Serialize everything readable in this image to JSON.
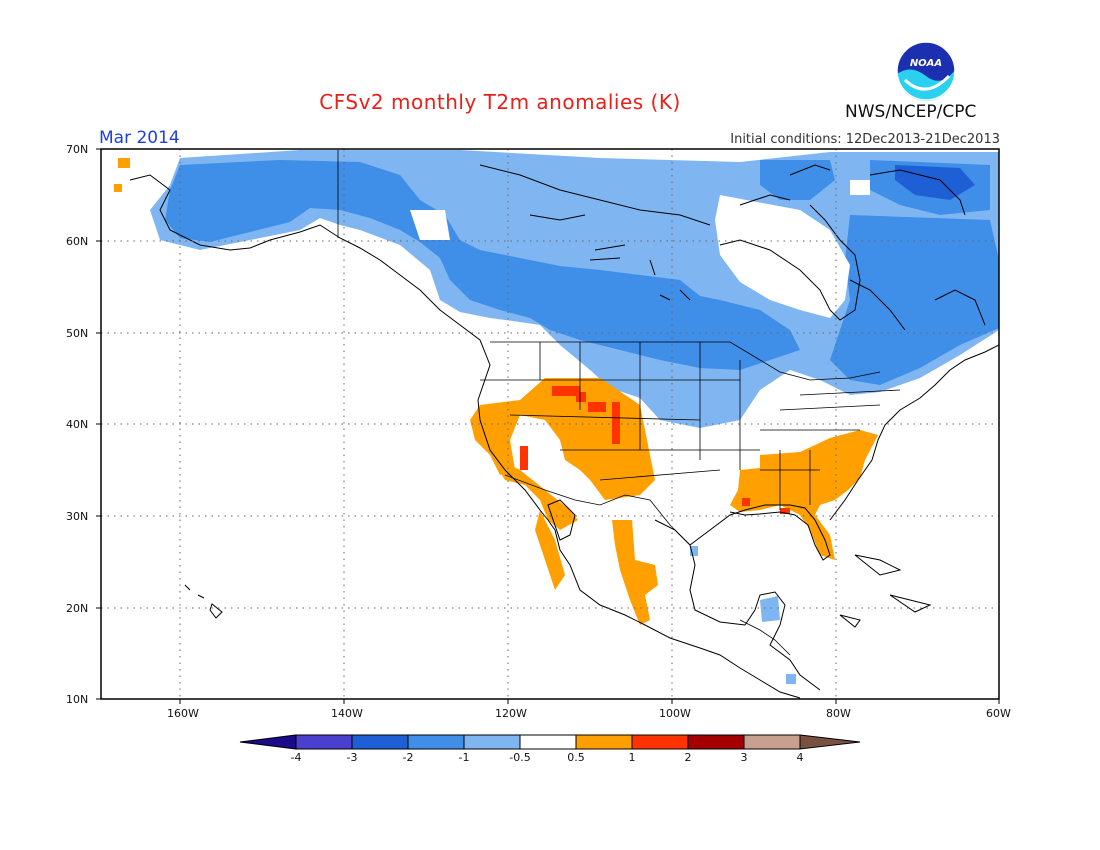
{
  "header": {
    "title": "CFSv2 monthly T2m anomalies (K)",
    "month": "Mar 2014",
    "initial_conditions": "Initial conditions: 12Dec2013-21Dec2013",
    "agency": "NWS/NCEP/CPC",
    "logo_text": "NOAA"
  },
  "map": {
    "projection": "lat-lon",
    "lon_range": [
      -170,
      -60
    ],
    "lat_range": [
      10,
      70
    ],
    "lat_ticks": [
      "10N",
      "20N",
      "30N",
      "40N",
      "50N",
      "60N",
      "70N"
    ],
    "lon_ticks": [
      "160W",
      "140W",
      "120W",
      "100W",
      "80W",
      "60W"
    ],
    "grid": "dotted"
  },
  "colorbar": {
    "labels": [
      "-4",
      "-3",
      "-2",
      "-1",
      "-0.5",
      "0.5",
      "1",
      "2",
      "3",
      "4"
    ],
    "colors": [
      "#1a0a8c",
      "#4b3fcf",
      "#1f5fd6",
      "#3f8ee8",
      "#7fb6f2",
      "#ffffff",
      "#ff9f00",
      "#ff3300",
      "#a50000",
      "#c8a090",
      "#7a5040"
    ]
  },
  "colors": {
    "cold_light": "#7fb6f2",
    "cold_mid": "#3f8ee8",
    "cold_dark": "#1f5fd6",
    "warm_light": "#ff9f00",
    "warm_mid": "#ff3300"
  }
}
